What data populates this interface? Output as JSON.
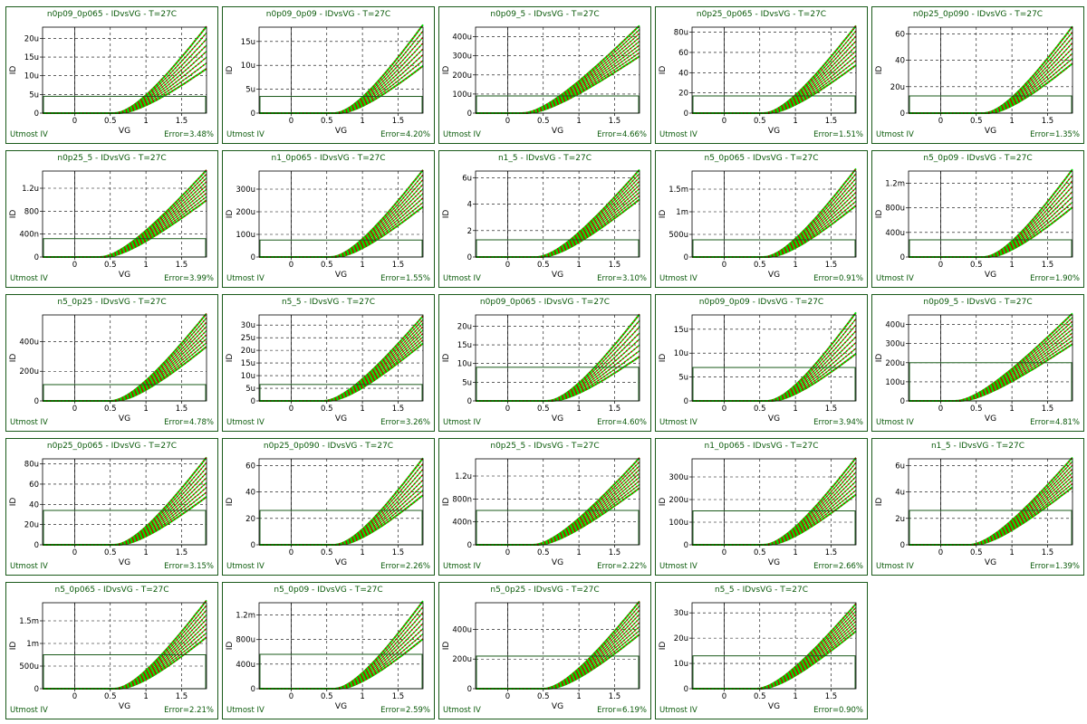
{
  "footer_left": "Utmost IV",
  "colors": {
    "measured": "#00dd00",
    "simulated": "#cc0000",
    "frame": "#1a5a1a",
    "text": "#0a5a0a"
  },
  "chart_data": [
    {
      "type": "line",
      "title": "n0p09_0p065 - IDvsVG - T=27C",
      "xlabel": "VG",
      "ylabel": "ID",
      "xlim": [
        -0.45,
        1.85
      ],
      "ylim": [
        0,
        23
      ],
      "yticks": [
        0,
        5,
        10,
        15,
        20
      ],
      "yticklabels": [
        "0",
        "5u",
        "10u",
        "15u",
        "20u"
      ],
      "xticks": [
        0,
        0.5,
        1,
        1.5
      ],
      "xticklabels": [
        "0",
        "0.5",
        "1",
        "1.5"
      ],
      "vth": 0.55,
      "ymax": 22,
      "ymin": 12,
      "nseries": 8,
      "box_top": 4.5,
      "error": "Error=3.48%"
    },
    {
      "type": "line",
      "title": "n0p09_0p09 - IDvsVG - T=27C",
      "xlabel": "VG",
      "ylabel": "ID",
      "xlim": [
        -0.45,
        1.85
      ],
      "ylim": [
        0,
        18
      ],
      "yticks": [
        0,
        5,
        10,
        15
      ],
      "yticklabels": [
        "0",
        "5u",
        "10u",
        "15u"
      ],
      "xticks": [
        0,
        0.5,
        1,
        1.5
      ],
      "xticklabels": [
        "0",
        "0.5",
        "1",
        "1.5"
      ],
      "vth": 0.6,
      "ymax": 17.5,
      "ymin": 10,
      "nseries": 8,
      "box_top": 3.5,
      "error": "Error=4.20%"
    },
    {
      "type": "line",
      "title": "n0p09_5 - IDvsVG - T=27C",
      "xlabel": "VG",
      "ylabel": "ID",
      "xlim": [
        -0.45,
        1.85
      ],
      "ylim": [
        0,
        450
      ],
      "yticks": [
        0,
        100,
        200,
        300,
        400
      ],
      "yticklabels": [
        "0",
        "100u",
        "200u",
        "300u",
        "400u"
      ],
      "xticks": [
        0,
        0.5,
        1,
        1.5
      ],
      "xticklabels": [
        "0",
        "0.5",
        "1",
        "1.5"
      ],
      "vth": 0.2,
      "ymax": 440,
      "ymin": 300,
      "nseries": 9,
      "box_top": 90,
      "error": "Error=4.66%"
    },
    {
      "type": "line",
      "title": "n0p25_0p065 - IDvsVG - T=27C",
      "xlabel": "VG",
      "ylabel": "ID",
      "xlim": [
        -0.45,
        1.85
      ],
      "ylim": [
        0,
        85
      ],
      "yticks": [
        0,
        20,
        40,
        60,
        80
      ],
      "yticklabels": [
        "0",
        "20",
        "40",
        "60",
        "80u"
      ],
      "xticks": [
        0,
        0.5,
        1,
        1.5
      ],
      "xticklabels": [
        "0",
        "0.5",
        "1",
        "1.5"
      ],
      "vth": 0.55,
      "ymax": 82,
      "ymin": 48,
      "nseries": 9,
      "box_top": 17,
      "error": "Error=1.51%"
    },
    {
      "type": "line",
      "title": "n0p25_0p090 - IDvsVG - T=27C",
      "xlabel": "VG",
      "ylabel": "ID",
      "xlim": [
        -0.45,
        1.85
      ],
      "ylim": [
        0,
        65
      ],
      "yticks": [
        0,
        20,
        40,
        60
      ],
      "yticklabels": [
        "0",
        "20u",
        "40",
        "60"
      ],
      "xticks": [
        0,
        0.5,
        1,
        1.5
      ],
      "xticklabels": [
        "0",
        "0.5",
        "1",
        "1.5"
      ],
      "vth": 0.6,
      "ymax": 62,
      "ymin": 38,
      "nseries": 8,
      "box_top": 13,
      "error": "Error=1.35%"
    },
    {
      "type": "line",
      "title": "n0p25_5 - IDvsVG - T=27C",
      "xlabel": "VG",
      "ylabel": "ID",
      "xlim": [
        -0.45,
        1.85
      ],
      "ylim": [
        0,
        1500
      ],
      "yticks": [
        0,
        400,
        800,
        1200
      ],
      "yticklabels": [
        "0",
        "400n",
        "800",
        "1.2u"
      ],
      "xticks": [
        0,
        0.5,
        1,
        1.5
      ],
      "xticklabels": [
        "0",
        "0.5",
        "1",
        "1.5"
      ],
      "vth": 0.35,
      "ymax": 1450,
      "ymin": 1000,
      "nseries": 9,
      "box_top": 320,
      "error": "Error=3.99%"
    },
    {
      "type": "line",
      "title": "n1_0p065 - IDvsVG - T=27C",
      "xlabel": "VG",
      "ylabel": "ID",
      "xlim": [
        -0.45,
        1.85
      ],
      "ylim": [
        0,
        380
      ],
      "yticks": [
        0,
        100,
        200,
        300
      ],
      "yticklabels": [
        "0",
        "100u",
        "200u",
        "300u"
      ],
      "xticks": [
        0,
        0.5,
        1,
        1.5
      ],
      "xticklabels": [
        "0",
        "0.5",
        "1",
        "1.5"
      ],
      "vth": 0.55,
      "ymax": 365,
      "ymin": 225,
      "nseries": 9,
      "box_top": 75,
      "error": "Error=1.55%"
    },
    {
      "type": "line",
      "title": "n1_5 - IDvsVG - T=27C",
      "xlabel": "VG",
      "ylabel": "ID",
      "xlim": [
        -0.45,
        1.85
      ],
      "ylim": [
        0,
        6.5
      ],
      "yticks": [
        0,
        2,
        4,
        6
      ],
      "yticklabels": [
        "0",
        "2",
        "4",
        "6u"
      ],
      "xticks": [
        0,
        0.5,
        1,
        1.5
      ],
      "xticklabels": [
        "0",
        "0.5",
        "1",
        "1.5"
      ],
      "vth": 0.4,
      "ymax": 6.3,
      "ymin": 4.4,
      "nseries": 9,
      "box_top": 1.3,
      "error": "Error=3.10%"
    },
    {
      "type": "line",
      "title": "n5_0p065 - IDvsVG - T=27C",
      "xlabel": "VG",
      "ylabel": "ID",
      "xlim": [
        -0.45,
        1.85
      ],
      "ylim": [
        0,
        1900
      ],
      "yticks": [
        0,
        500,
        1000,
        1500
      ],
      "yticklabels": [
        "0",
        "500u",
        "1m",
        "1.5m"
      ],
      "xticks": [
        0,
        0.5,
        1,
        1.5
      ],
      "xticklabels": [
        "0",
        "0.5",
        "1",
        "1.5"
      ],
      "vth": 0.55,
      "ymax": 1850,
      "ymin": 1150,
      "nseries": 9,
      "box_top": 380,
      "error": "Error=0.91%"
    },
    {
      "type": "line",
      "title": "n5_0p09 - IDvsVG - T=27C",
      "xlabel": "VG",
      "ylabel": "ID",
      "xlim": [
        -0.45,
        1.85
      ],
      "ylim": [
        0,
        1400
      ],
      "yticks": [
        0,
        400,
        800,
        1200
      ],
      "yticklabels": [
        "0",
        "400u",
        "800u",
        "1.2m"
      ],
      "xticks": [
        0,
        0.5,
        1,
        1.5
      ],
      "xticklabels": [
        "0",
        "0.5",
        "1",
        "1.5"
      ],
      "vth": 0.6,
      "ymax": 1350,
      "ymin": 820,
      "nseries": 8,
      "box_top": 280,
      "error": "Error=1.90%"
    },
    {
      "type": "line",
      "title": "n5_0p25 - IDvsVG - T=27C",
      "xlabel": "VG",
      "ylabel": "ID",
      "xlim": [
        -0.45,
        1.85
      ],
      "ylim": [
        0,
        580
      ],
      "yticks": [
        0,
        200,
        400
      ],
      "yticklabels": [
        "0",
        "200u",
        "400u"
      ],
      "xticks": [
        0,
        0.5,
        1,
        1.5
      ],
      "xticklabels": [
        "0",
        "0.5",
        "1",
        "1.5"
      ],
      "vth": 0.5,
      "ymax": 560,
      "ymin": 370,
      "nseries": 9,
      "box_top": 110,
      "error": "Error=4.78%"
    },
    {
      "type": "line",
      "title": "n5_5 - IDvsVG - T=27C",
      "xlabel": "VG",
      "ylabel": "ID",
      "xlim": [
        -0.45,
        1.85
      ],
      "ylim": [
        0,
        34
      ],
      "yticks": [
        0,
        5,
        10,
        15,
        20,
        25,
        30
      ],
      "yticklabels": [
        "0",
        "5u",
        "10u",
        "15u",
        "20u",
        "25u",
        "30u"
      ],
      "xticks": [
        0,
        0.5,
        1,
        1.5
      ],
      "xticklabels": [
        "0",
        "0.5",
        "1",
        "1.5"
      ],
      "vth": 0.45,
      "ymax": 32,
      "ymin": 23,
      "nseries": 9,
      "box_top": 6.5,
      "error": "Error=3.26%"
    },
    {
      "type": "line",
      "title": "n0p09_0p065 - IDvsVG - T=27C",
      "xlabel": "VG",
      "ylabel": "ID",
      "xlim": [
        -0.45,
        1.85
      ],
      "ylim": [
        0,
        23
      ],
      "yticks": [
        0,
        5,
        10,
        15,
        20
      ],
      "yticklabels": [
        "0",
        "5u",
        "10u",
        "15u",
        "20u"
      ],
      "xticks": [
        0,
        0.5,
        1,
        1.5
      ],
      "xticklabels": [
        "0",
        "0.5",
        "1",
        "1.5"
      ],
      "vth": 0.55,
      "ymax": 22,
      "ymin": 12,
      "nseries": 8,
      "box_top": 9,
      "error": "Error=4.60%"
    },
    {
      "type": "line",
      "title": "n0p09_0p09 - IDvsVG - T=27C",
      "xlabel": "VG",
      "ylabel": "ID",
      "xlim": [
        -0.45,
        1.85
      ],
      "ylim": [
        0,
        18
      ],
      "yticks": [
        0,
        5,
        10,
        15
      ],
      "yticklabels": [
        "0",
        "5u",
        "10u",
        "15u"
      ],
      "xticks": [
        0,
        0.5,
        1,
        1.5
      ],
      "xticklabels": [
        "0",
        "0.5",
        "1",
        "1.5"
      ],
      "vth": 0.6,
      "ymax": 17.5,
      "ymin": 10,
      "nseries": 8,
      "box_top": 7,
      "error": "Error=3.94%"
    },
    {
      "type": "line",
      "title": "n0p09_5 - IDvsVG - T=27C",
      "xlabel": "VG",
      "ylabel": "ID",
      "xlim": [
        -0.45,
        1.85
      ],
      "ylim": [
        0,
        450
      ],
      "yticks": [
        0,
        100,
        200,
        300,
        400
      ],
      "yticklabels": [
        "0",
        "100u",
        "200u",
        "300u",
        "400u"
      ],
      "xticks": [
        0,
        0.5,
        1,
        1.5
      ],
      "xticklabels": [
        "0",
        "0.5",
        "1",
        "1.5"
      ],
      "vth": 0.2,
      "ymax": 440,
      "ymin": 300,
      "nseries": 9,
      "box_top": 200,
      "error": "Error=4.81%"
    },
    {
      "type": "line",
      "title": "n0p25_0p065 - IDvsVG - T=27C",
      "xlabel": "VG",
      "ylabel": "ID",
      "xlim": [
        -0.45,
        1.85
      ],
      "ylim": [
        0,
        85
      ],
      "yticks": [
        0,
        20,
        40,
        60,
        80
      ],
      "yticklabels": [
        "0",
        "20u",
        "40",
        "60",
        "80u"
      ],
      "xticks": [
        0,
        0.5,
        1,
        1.5
      ],
      "xticklabels": [
        "0",
        "0.5",
        "1",
        "1.5"
      ],
      "vth": 0.55,
      "ymax": 82,
      "ymin": 48,
      "nseries": 9,
      "box_top": 34,
      "error": "Error=3.15%"
    },
    {
      "type": "line",
      "title": "n0p25_0p090 - IDvsVG - T=27C",
      "xlabel": "VG",
      "ylabel": "ID",
      "xlim": [
        -0.45,
        1.85
      ],
      "ylim": [
        0,
        65
      ],
      "yticks": [
        0,
        20,
        40,
        60
      ],
      "yticklabels": [
        "0",
        "20",
        "40",
        "60"
      ],
      "xticks": [
        0,
        0.5,
        1,
        1.5
      ],
      "xticklabels": [
        "0",
        "0.5",
        "1",
        "1.5"
      ],
      "vth": 0.6,
      "ymax": 62,
      "ymin": 38,
      "nseries": 8,
      "box_top": 26,
      "error": "Error=2.26%"
    },
    {
      "type": "line",
      "title": "n0p25_5 - IDvsVG - T=27C",
      "xlabel": "VG",
      "ylabel": "ID",
      "xlim": [
        -0.45,
        1.85
      ],
      "ylim": [
        0,
        1500
      ],
      "yticks": [
        0,
        400,
        800,
        1200
      ],
      "yticklabels": [
        "0",
        "400n",
        "800n",
        "1.2u"
      ],
      "xticks": [
        0,
        0.5,
        1,
        1.5
      ],
      "xticklabels": [
        "0",
        "0.5",
        "1",
        "1.5"
      ],
      "vth": 0.35,
      "ymax": 1450,
      "ymin": 1000,
      "nseries": 9,
      "box_top": 600,
      "error": "Error=2.22%"
    },
    {
      "type": "line",
      "title": "n1_0p065 - IDvsVG - T=27C",
      "xlabel": "VG",
      "ylabel": "ID",
      "xlim": [
        -0.45,
        1.85
      ],
      "ylim": [
        0,
        380
      ],
      "yticks": [
        0,
        100,
        200,
        300
      ],
      "yticklabels": [
        "0",
        "100u",
        "200u",
        "300u"
      ],
      "xticks": [
        0,
        0.5,
        1,
        1.5
      ],
      "xticklabels": [
        "0",
        "0.5",
        "1",
        "1.5"
      ],
      "vth": 0.55,
      "ymax": 365,
      "ymin": 225,
      "nseries": 9,
      "box_top": 150,
      "error": "Error=2.66%"
    },
    {
      "type": "line",
      "title": "n1_5 - IDvsVG - T=27C",
      "xlabel": "VG",
      "ylabel": "ID",
      "xlim": [
        -0.45,
        1.85
      ],
      "ylim": [
        0,
        6.5
      ],
      "yticks": [
        0,
        2,
        4,
        6
      ],
      "yticklabels": [
        "0",
        "2u",
        "4u",
        "6u"
      ],
      "xticks": [
        0,
        0.5,
        1,
        1.5
      ],
      "xticklabels": [
        "0",
        "0.5",
        "1",
        "1.5"
      ],
      "vth": 0.4,
      "ymax": 6.3,
      "ymin": 4.4,
      "nseries": 9,
      "box_top": 2.6,
      "error": "Error=1.39%"
    },
    {
      "type": "line",
      "title": "n5_0p065 - IDvsVG - T=27C",
      "xlabel": "VG",
      "ylabel": "ID",
      "xlim": [
        -0.45,
        1.85
      ],
      "ylim": [
        0,
        1900
      ],
      "yticks": [
        0,
        500,
        1000,
        1500
      ],
      "yticklabels": [
        "0",
        "500u",
        "1m",
        "1.5m"
      ],
      "xticks": [
        0,
        0.5,
        1,
        1.5
      ],
      "xticklabels": [
        "0",
        "0.5",
        "1",
        "1.5"
      ],
      "vth": 0.55,
      "ymax": 1850,
      "ymin": 1150,
      "nseries": 9,
      "box_top": 750,
      "error": "Error=2.21%"
    },
    {
      "type": "line",
      "title": "n5_0p09 - IDvsVG - T=27C",
      "xlabel": "VG",
      "ylabel": "ID",
      "xlim": [
        -0.45,
        1.85
      ],
      "ylim": [
        0,
        1400
      ],
      "yticks": [
        0,
        400,
        800,
        1200
      ],
      "yticklabels": [
        "0",
        "400u",
        "800u",
        "1.2m"
      ],
      "xticks": [
        0,
        0.5,
        1,
        1.5
      ],
      "xticklabels": [
        "0",
        "0.5",
        "1",
        "1.5"
      ],
      "vth": 0.6,
      "ymax": 1350,
      "ymin": 820,
      "nseries": 8,
      "box_top": 560,
      "error": "Error=2.59%"
    },
    {
      "type": "line",
      "title": "n5_0p25 - IDvsVG - T=27C",
      "xlabel": "VG",
      "ylabel": "ID",
      "xlim": [
        -0.45,
        1.85
      ],
      "ylim": [
        0,
        580
      ],
      "yticks": [
        0,
        200,
        400
      ],
      "yticklabels": [
        "0",
        "200u",
        "400u"
      ],
      "xticks": [
        0,
        0.5,
        1,
        1.5
      ],
      "xticklabels": [
        "0",
        "0.5",
        "1",
        "1.5"
      ],
      "vth": 0.5,
      "ymax": 560,
      "ymin": 370,
      "nseries": 9,
      "box_top": 220,
      "error": "Error=6.19%"
    },
    {
      "type": "line",
      "title": "n5_5 - IDvsVG - T=27C",
      "xlabel": "VG",
      "ylabel": "ID",
      "xlim": [
        -0.45,
        1.85
      ],
      "ylim": [
        0,
        34
      ],
      "yticks": [
        0,
        10,
        20,
        30
      ],
      "yticklabels": [
        "0",
        "10u",
        "20u",
        "30u"
      ],
      "xticks": [
        0,
        0.5,
        1,
        1.5
      ],
      "xticklabels": [
        "0",
        "0.5",
        "1",
        "1.5"
      ],
      "vth": 0.45,
      "ymax": 32,
      "ymin": 23,
      "nseries": 9,
      "box_top": 13,
      "error": "Error=0.90%"
    }
  ]
}
